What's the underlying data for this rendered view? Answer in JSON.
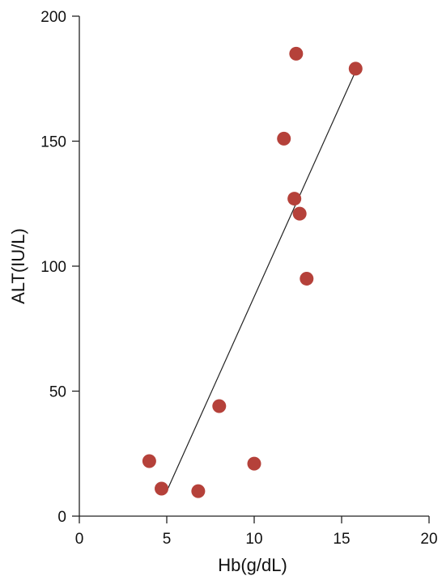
{
  "chart_data": {
    "type": "scatter",
    "title": "",
    "xlabel": "Hb(g/dL)",
    "ylabel": "ALT(IU/L)",
    "xlim": [
      0,
      20
    ],
    "ylim": [
      0,
      200
    ],
    "x_ticks": [
      0,
      5,
      10,
      15,
      20
    ],
    "y_ticks": [
      0,
      50,
      100,
      150,
      200
    ],
    "x_tick_labels": [
      "0",
      "5",
      "10",
      "15",
      "20"
    ],
    "y_tick_labels": [
      "0",
      "50",
      "100",
      "150",
      "200"
    ],
    "grid": false,
    "legend": "none",
    "points": [
      {
        "x": 4.0,
        "y": 22
      },
      {
        "x": 4.7,
        "y": 11
      },
      {
        "x": 6.8,
        "y": 10
      },
      {
        "x": 8.0,
        "y": 44
      },
      {
        "x": 10.0,
        "y": 21
      },
      {
        "x": 11.7,
        "y": 151
      },
      {
        "x": 12.3,
        "y": 127
      },
      {
        "x": 12.4,
        "y": 185
      },
      {
        "x": 12.6,
        "y": 121
      },
      {
        "x": 13.0,
        "y": 95
      },
      {
        "x": 15.8,
        "y": 179
      }
    ],
    "trend_line": {
      "x1": 5.0,
      "y1": 10,
      "x2": 15.8,
      "y2": 178
    },
    "colors": {
      "point": "#b5413a",
      "line": "#222222",
      "axis": "#222222"
    }
  }
}
